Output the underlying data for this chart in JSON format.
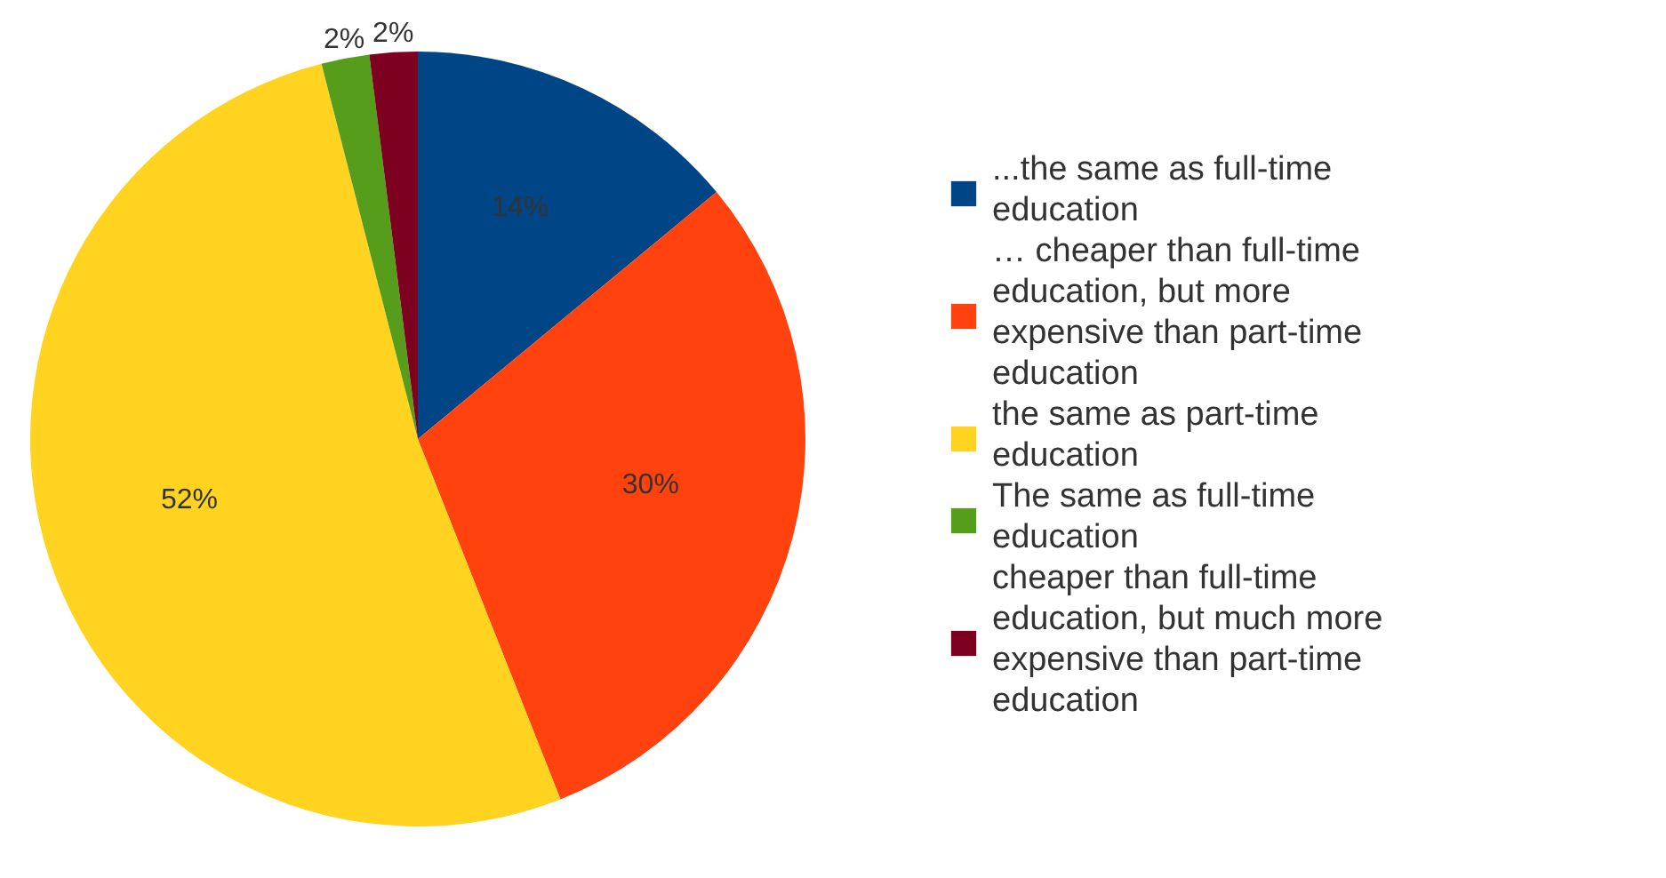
{
  "chart_data": {
    "type": "pie",
    "categories": [
      "...the same as full-time education",
      "… cheaper than full-time education, but more expensive than part-time education",
      "the same as part-time education",
      "The same as full-time education",
      "cheaper than full-time education, but much more expensive than part-time education"
    ],
    "values": [
      14,
      30,
      52,
      2,
      2
    ],
    "value_labels": [
      "14%",
      "30%",
      "52%",
      "2%",
      "2%"
    ],
    "colors": [
      "#004586",
      "#ff420e",
      "#ffd320",
      "#579d1c",
      "#7e0021"
    ],
    "legend": "right"
  }
}
